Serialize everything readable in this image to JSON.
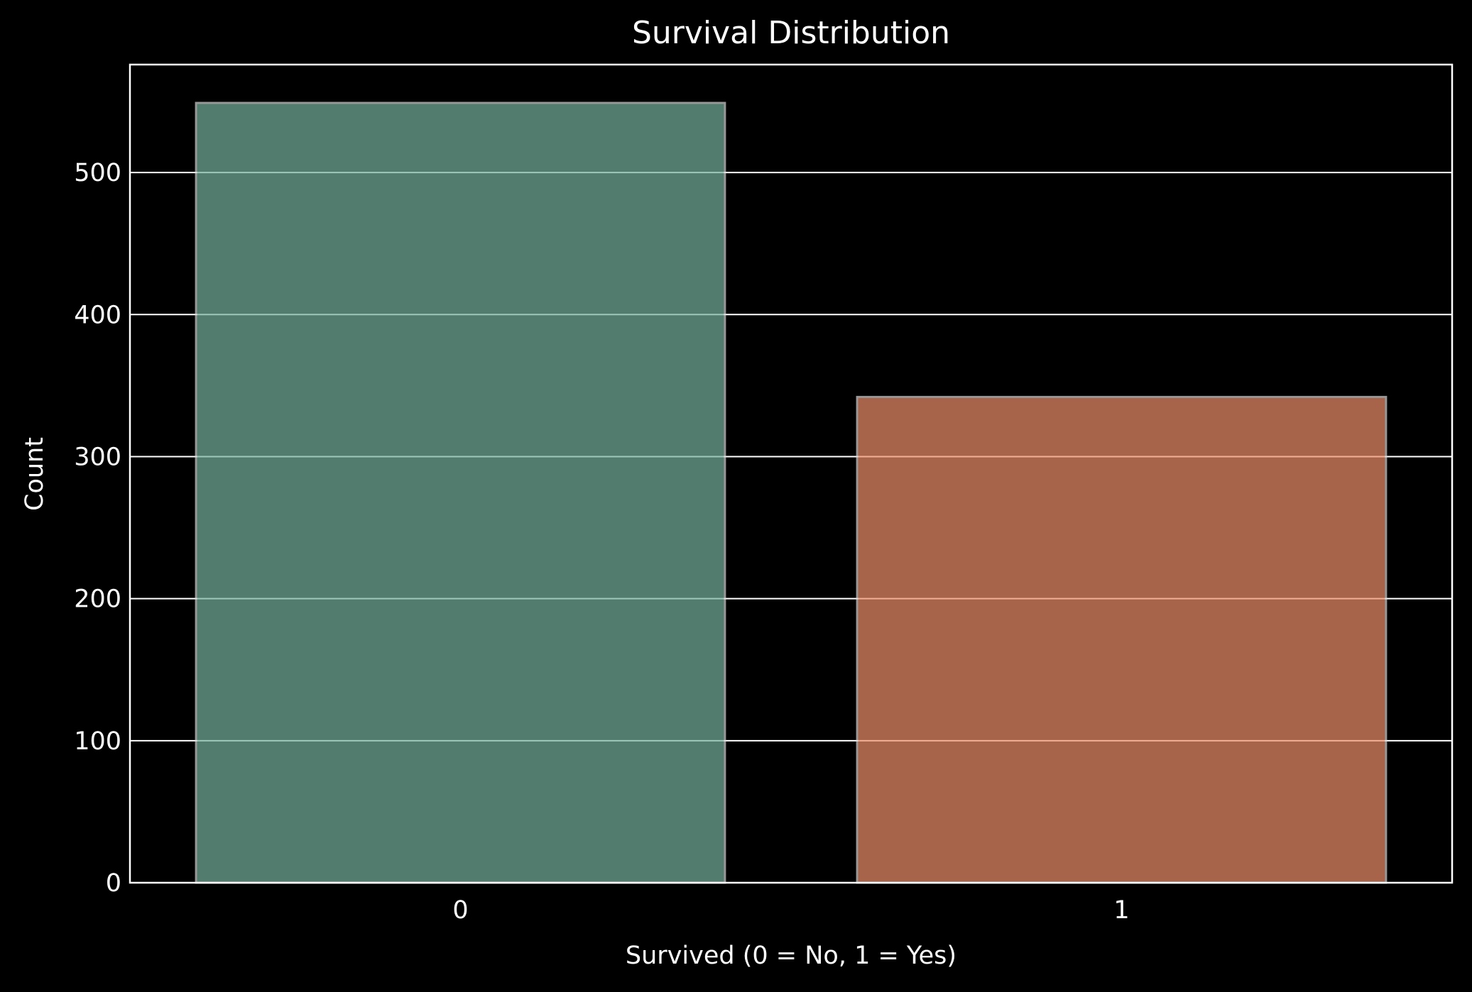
{
  "chart_data": {
    "type": "bar",
    "title": "Survival Distribution",
    "xlabel": "Survived (0 = No, 1 = Yes)",
    "ylabel": "Count",
    "categories": [
      "0",
      "1"
    ],
    "values": [
      549,
      342
    ],
    "ylim": [
      0,
      576
    ],
    "yticks": [
      0,
      100,
      200,
      300,
      400,
      500
    ],
    "grid": "horizontal",
    "colors": [
      "#76b39d",
      "#ef8e6b"
    ],
    "background": "#000000"
  }
}
